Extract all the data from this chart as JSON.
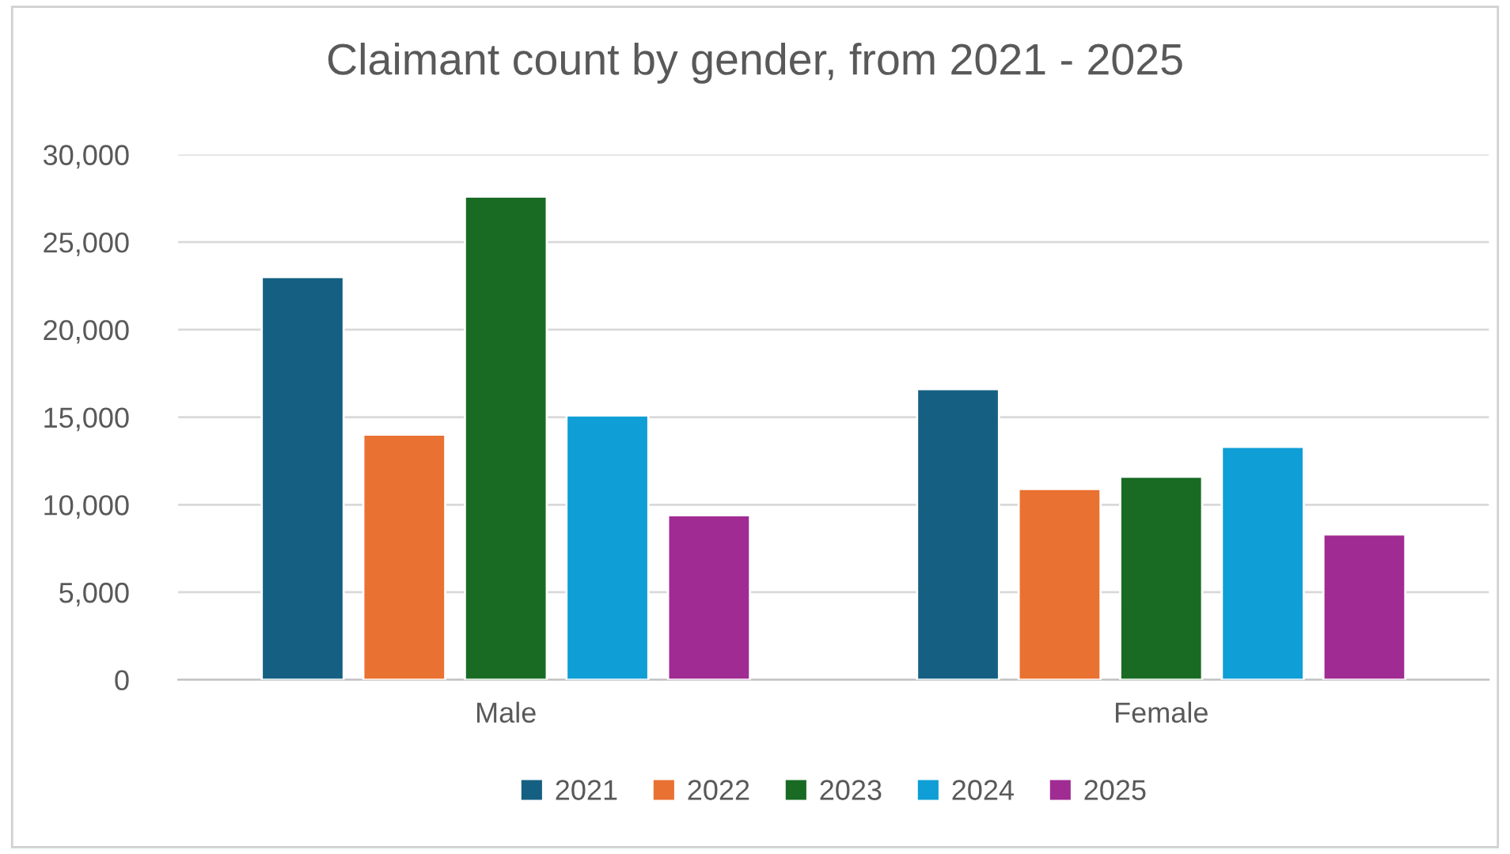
{
  "chart_data": {
    "type": "bar",
    "title": "Claimant count by gender, from 2021 - 2025",
    "categories": [
      "Male",
      "Female"
    ],
    "series": [
      {
        "name": "2021",
        "color": "#156082",
        "values": [
          23000,
          16600
        ]
      },
      {
        "name": "2022",
        "color": "#e97132",
        "values": [
          14000,
          10900
        ]
      },
      {
        "name": "2023",
        "color": "#196b24",
        "values": [
          27600,
          11600
        ]
      },
      {
        "name": "2024",
        "color": "#0f9ed5",
        "values": [
          15100,
          13300
        ]
      },
      {
        "name": "2025",
        "color": "#a02b93",
        "values": [
          9400,
          8300
        ]
      }
    ],
    "ylim": [
      0,
      30000
    ],
    "yticks": [
      {
        "value": 0,
        "label": "0"
      },
      {
        "value": 5000,
        "label": "5,000"
      },
      {
        "value": 10000,
        "label": "10,000"
      },
      {
        "value": 15000,
        "label": "15,000"
      },
      {
        "value": 20000,
        "label": "20,000"
      },
      {
        "value": 25000,
        "label": "25,000"
      },
      {
        "value": 30000,
        "label": "30,000"
      }
    ],
    "grid": "y",
    "legend": "bottom"
  }
}
